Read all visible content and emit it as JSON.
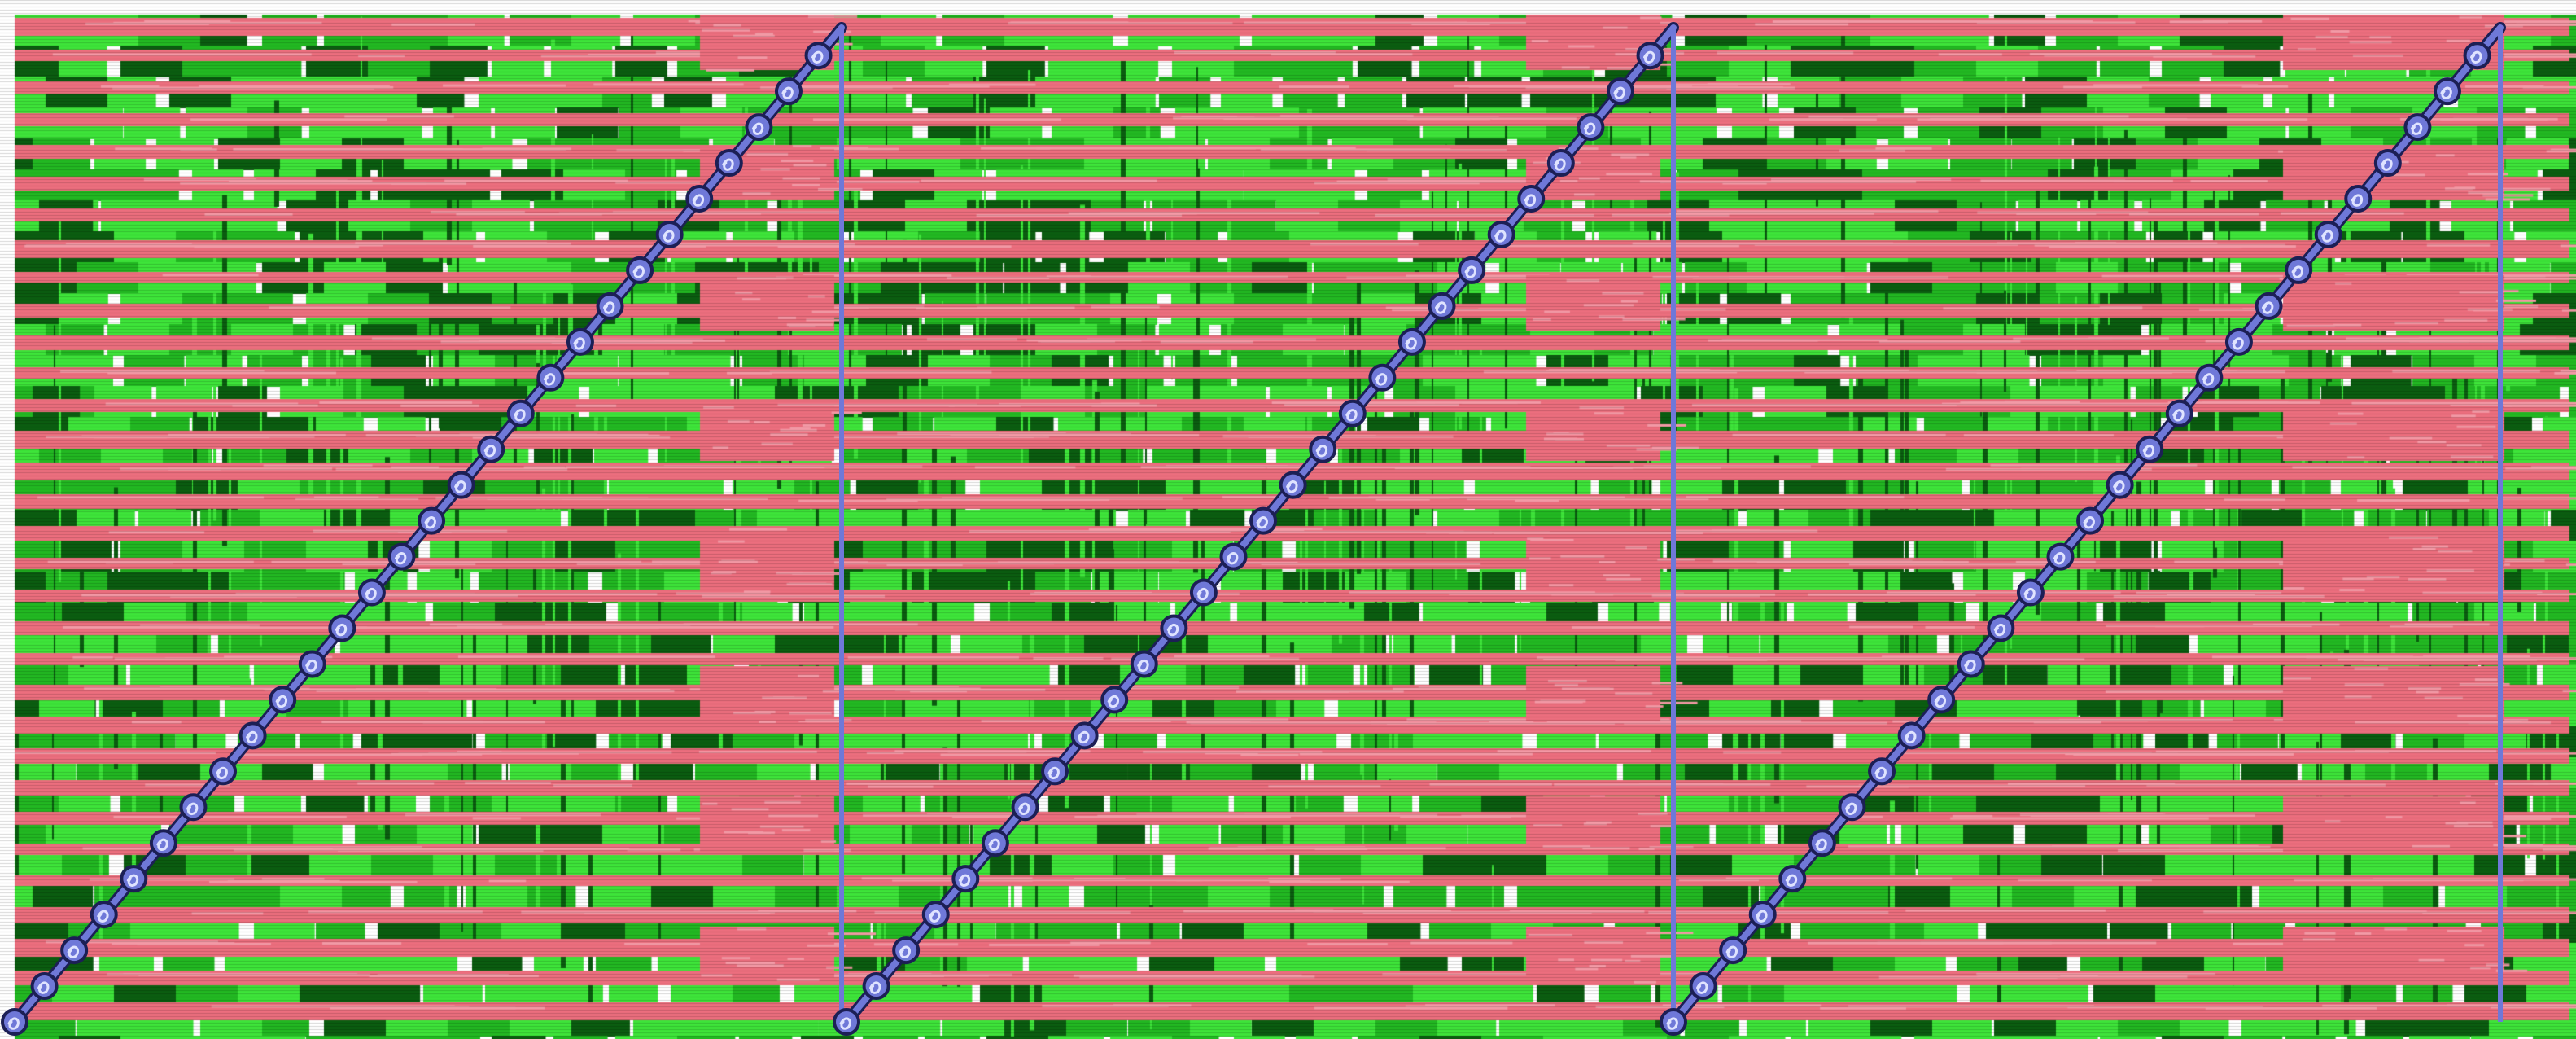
{
  "scene": {
    "description_type": "glitched waveform-like raster visualization",
    "colors": {
      "page_background": "#ffffff",
      "green_bright": "#3ee43a",
      "green_mid": "#22b822",
      "green_dark": "#0b5d10",
      "pink": "#ec6e7e",
      "pink_light": "#f39aa6",
      "trace_blue": "#6f78d8",
      "trace_dark": "#1c1f55"
    },
    "layers": {
      "base_pattern": "green-block-matrix",
      "stripe_pattern": "pink-horizontal-stripes",
      "trace_pattern": "blue-sawtooth-diagonals"
    },
    "icons": {
      "trace_marker": "spiral-node-icon"
    }
  }
}
